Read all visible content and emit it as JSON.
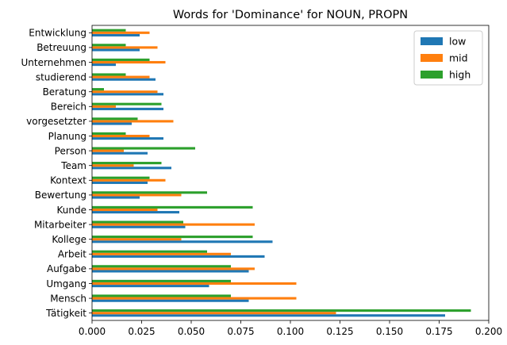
{
  "chart_data": {
    "type": "bar",
    "orientation": "horizontal",
    "title": "Words for 'Dominance' for NOUN, PROPN",
    "xlabel": "",
    "ylabel": "",
    "xlim": [
      0,
      0.2
    ],
    "xticks": [
      "0.000",
      "0.025",
      "0.050",
      "0.075",
      "0.100",
      "0.125",
      "0.150",
      "0.175",
      "0.200"
    ],
    "grid": false,
    "legend_position": "top-right",
    "categories": [
      "Tätigkeit",
      "Mensch",
      "Umgang",
      "Aufgabe",
      "Arbeit",
      "Kollege",
      "Mitarbeiter",
      "Kunde",
      "Bewertung",
      "Kontext",
      "Team",
      "Person",
      "Planung",
      "vorgesetzter",
      "Bereich",
      "Beratung",
      "studierend",
      "Unternehmen",
      "Betreuung",
      "Entwicklung"
    ],
    "series": [
      {
        "name": "low",
        "color": "#1f77b4",
        "values": [
          0.178,
          0.079,
          0.059,
          0.079,
          0.087,
          0.091,
          0.047,
          0.044,
          0.024,
          0.028,
          0.04,
          0.028,
          0.036,
          0.02,
          0.036,
          0.036,
          0.032,
          0.012,
          0.024,
          0.024
        ]
      },
      {
        "name": "mid",
        "color": "#ff7f0e",
        "values": [
          0.123,
          0.103,
          0.103,
          0.082,
          0.07,
          0.045,
          0.082,
          0.033,
          0.045,
          0.037,
          0.021,
          0.016,
          0.029,
          0.041,
          0.012,
          0.033,
          0.029,
          0.037,
          0.033,
          0.029
        ]
      },
      {
        "name": "high",
        "color": "#2ca02c",
        "values": [
          0.191,
          0.07,
          0.07,
          0.07,
          0.058,
          0.081,
          0.046,
          0.081,
          0.058,
          0.029,
          0.035,
          0.052,
          0.017,
          0.023,
          0.035,
          0.006,
          0.017,
          0.029,
          0.017,
          0.017
        ]
      }
    ]
  }
}
